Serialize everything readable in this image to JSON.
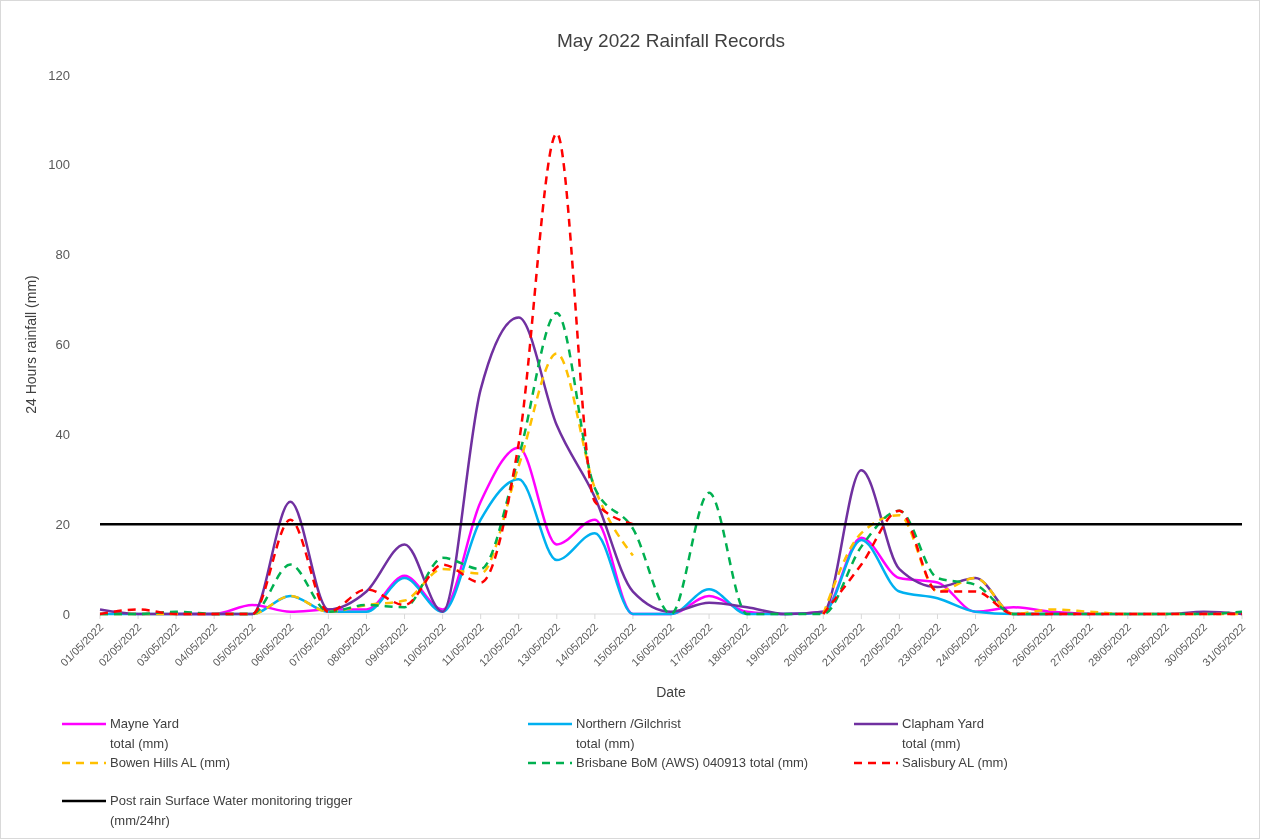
{
  "chart_data": {
    "type": "line",
    "title": "May 2022 Rainfall Records",
    "xlabel": "Date",
    "ylabel": "24 Hours rainfall (mm)",
    "categories": [
      "01/05/2022",
      "02/05/2022",
      "03/05/2022",
      "04/05/2022",
      "05/05/2022",
      "06/05/2022",
      "07/05/2022",
      "08/05/2022",
      "09/05/2022",
      "10/05/2022",
      "11/05/2022",
      "12/05/2022",
      "13/05/2022",
      "14/05/2022",
      "15/05/2022",
      "16/05/2022",
      "17/05/2022",
      "18/05/2022",
      "19/05/2022",
      "20/05/2022",
      "21/05/2022",
      "22/05/2022",
      "23/05/2022",
      "24/05/2022",
      "25/05/2022",
      "26/05/2022",
      "27/05/2022",
      "28/05/2022",
      "29/05/2022",
      "30/05/2022",
      "31/05/2022"
    ],
    "ylim": [
      0,
      120
    ],
    "yticks": [
      0,
      20,
      40,
      60,
      80,
      100,
      120
    ],
    "grid": false,
    "legend": "bottom",
    "marker": "none",
    "series": [
      {
        "name": "Mayne Yard\ntotal (mm)",
        "color": "#ff00ff",
        "line_style": "solid",
        "values": [
          null,
          null,
          0,
          0,
          2,
          0.5,
          1,
          1,
          8.5,
          1,
          25,
          37,
          15.5,
          21,
          0,
          0,
          4,
          0.5,
          0,
          0.5,
          17,
          8,
          7,
          0.5,
          1.5,
          0.5,
          0,
          null,
          null,
          null,
          null
        ]
      },
      {
        "name": "Northern  /Gilchrist\ntotal (mm)",
        "color": "#00b0f0",
        "line_style": "solid",
        "values": [
          0,
          0,
          0,
          0,
          0,
          4,
          0.5,
          0.5,
          8,
          0.5,
          21,
          30,
          12,
          18,
          0,
          0,
          5.5,
          0,
          0,
          0.3,
          16.5,
          5,
          3.5,
          0.5,
          0,
          0,
          null,
          null,
          null,
          null,
          null
        ]
      },
      {
        "name": "Clapham Yard\ntotal (mm)",
        "color": "#7030a0",
        "line_style": "solid",
        "values": [
          1,
          0,
          0,
          0,
          0,
          25,
          1,
          5,
          15.5,
          0.5,
          50,
          66,
          42,
          26,
          5,
          0.5,
          2.5,
          1.5,
          0,
          0.5,
          32,
          10,
          6,
          8,
          0,
          0,
          0,
          0,
          0,
          0.5,
          0
        ]
      },
      {
        "name": "Bowen Hills AL (mm)",
        "color": "#ffc000",
        "line_style": "dashed",
        "values": [
          0,
          0,
          0,
          0,
          0,
          4,
          0.5,
          2,
          3,
          10,
          9,
          33,
          58,
          28,
          13,
          null,
          null,
          null,
          null,
          0,
          18,
          22,
          5,
          8,
          0,
          1,
          0.5,
          0,
          0,
          0,
          0
        ]
      },
      {
        "name": "Brisbane BoM (AWS) 040913 total (mm)",
        "color": "#00b050",
        "line_style": "dashed",
        "values": [
          0,
          0,
          0.5,
          0,
          0,
          11,
          0.5,
          2,
          1.5,
          12.5,
          10,
          35,
          67,
          28,
          19,
          0,
          27,
          0,
          0,
          0,
          15,
          23,
          8,
          6.5,
          0,
          0,
          0,
          0,
          0,
          0,
          0.5
        ]
      },
      {
        "name": "Salisbury AL (mm)",
        "color": "#ff0000",
        "line_style": "dashed",
        "values": [
          0,
          1,
          0,
          0,
          0,
          21,
          0.5,
          5.5,
          2,
          11,
          7,
          38,
          107,
          25,
          20,
          null,
          null,
          null,
          null,
          0,
          11,
          23,
          5,
          5,
          0,
          0,
          0,
          0,
          0,
          0,
          0
        ]
      }
    ],
    "ref_lines": [
      {
        "axis": "y",
        "value": 20,
        "label": "Post rain Surface Water monitoring trigger\n(mm/24hr)",
        "color": "#000000",
        "line_style": "solid"
      }
    ]
  }
}
